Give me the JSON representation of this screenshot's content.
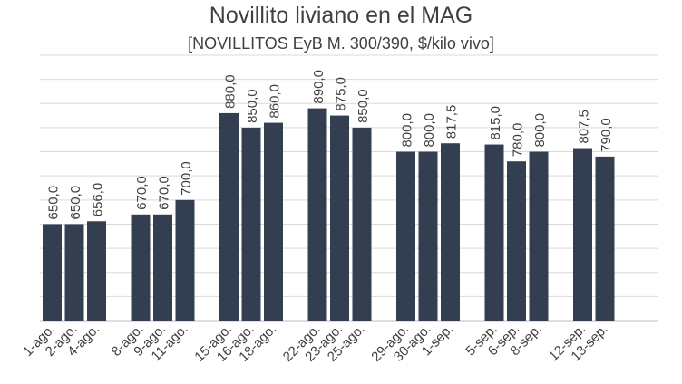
{
  "chart_data": {
    "type": "bar",
    "title": "Novillito liviano en el MAG",
    "subtitle": "[NOVILLITOS EyB M. 300/390, $/kilo vivo]",
    "groups": [
      {
        "categories": [
          "1-ago.",
          "2-ago.",
          "4-ago."
        ],
        "values": [
          650,
          650,
          656
        ],
        "labels": [
          "650,0",
          "650,0",
          "656,0"
        ]
      },
      {
        "categories": [
          "8-ago.",
          "9-ago.",
          "11-ago."
        ],
        "values": [
          670,
          670,
          700
        ],
        "labels": [
          "670,0",
          "670,0",
          "700,0"
        ]
      },
      {
        "categories": [
          "15-ago.",
          "16-ago.",
          "18-ago."
        ],
        "values": [
          880,
          850,
          860
        ],
        "labels": [
          "880,0",
          "850,0",
          "860,0"
        ]
      },
      {
        "categories": [
          "22-ago.",
          "23-ago.",
          "25-ago."
        ],
        "values": [
          890,
          875,
          850
        ],
        "labels": [
          "890,0",
          "875,0",
          "850,0"
        ]
      },
      {
        "categories": [
          "29-ago.",
          "30-ago.",
          "1-sep."
        ],
        "values": [
          800,
          800,
          817.5
        ],
        "labels": [
          "800,0",
          "800,0",
          "817,5"
        ]
      },
      {
        "categories": [
          "5-sep.",
          "6-sep.",
          "8-sep."
        ],
        "values": [
          815,
          780,
          800
        ],
        "labels": [
          "815,0",
          "780,0",
          "800,0"
        ]
      },
      {
        "categories": [
          "12-sep.",
          "13-sep."
        ],
        "values": [
          807.5,
          790
        ],
        "labels": [
          "807,5",
          "790,0"
        ]
      }
    ],
    "ylim": [
      450,
      1000
    ],
    "grid": true,
    "bar_color": "#333f50",
    "grid_color": "#d9d9d9",
    "text_color": "#404040"
  }
}
